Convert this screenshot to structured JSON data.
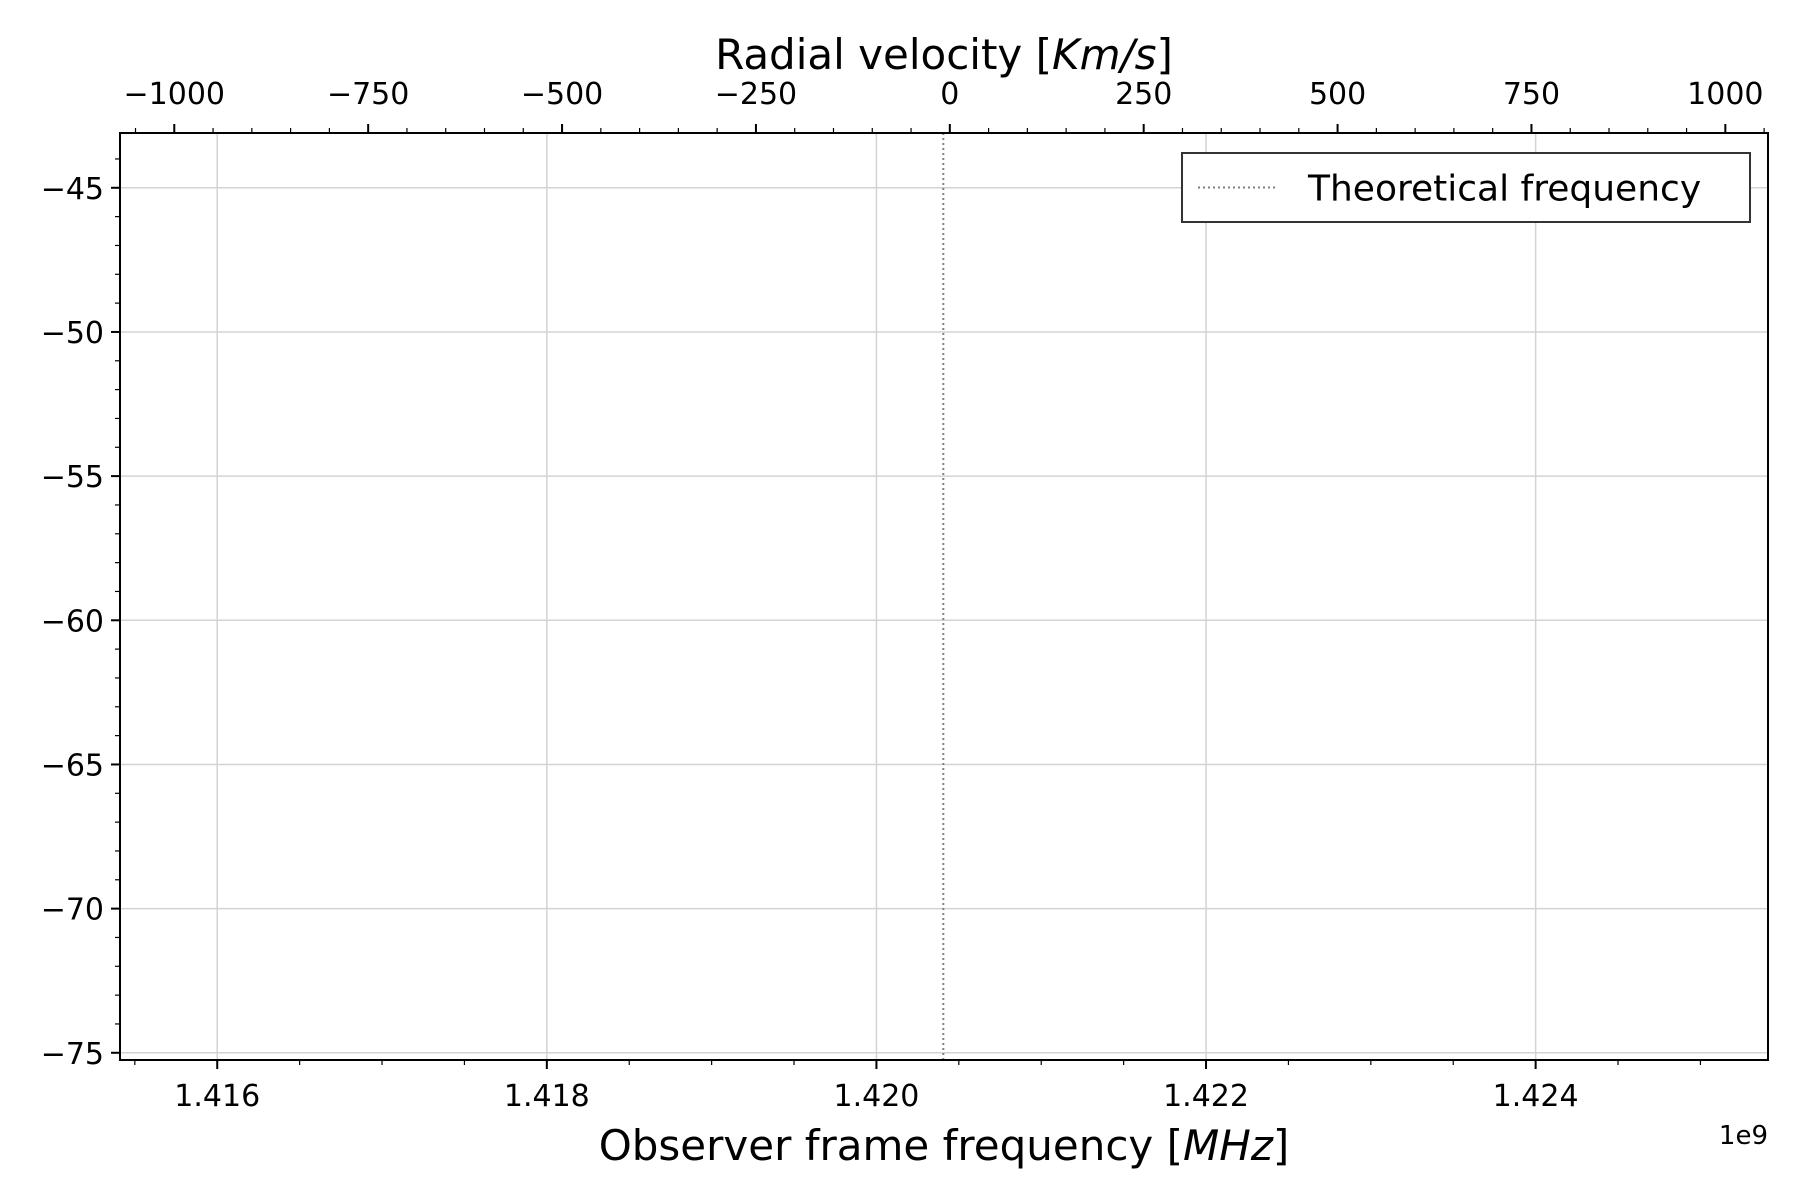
{
  "chart_data": {
    "type": "line",
    "title": "",
    "xlabel": {
      "main": "Observer frame frequency [",
      "italic": "MHz",
      "end": "]"
    },
    "x2label": {
      "main": "Radial velocity [",
      "italic": "Km/s",
      "end": "]"
    },
    "ylabel": "",
    "x_offset_label": "1e9",
    "xlim": [
      1.41541,
      1.42541
    ],
    "ylim": [
      -75.25,
      -43.1
    ],
    "x_ticks": [
      1.416,
      1.418,
      1.42,
      1.422,
      1.424
    ],
    "x_tick_labels": [
      "1.416",
      "1.418",
      "1.420",
      "1.422",
      "1.424"
    ],
    "x_minor_step": 0.0005,
    "x2lim": [
      -1070,
      1055
    ],
    "x2_ticks": [
      -1000,
      -750,
      -500,
      -250,
      0,
      250,
      500,
      750,
      1000
    ],
    "x2_tick_labels": [
      "−1000",
      "−750",
      "−500",
      "−250",
      "0",
      "250",
      "500",
      "750",
      "1000"
    ],
    "x2_minor_step": 50,
    "y_ticks": [
      -45,
      -50,
      -55,
      -60,
      -65,
      -70,
      -75
    ],
    "y_tick_labels": [
      "−45",
      "−50",
      "−55",
      "−60",
      "−65",
      "−70",
      "−75"
    ],
    "y_minor_step": 1,
    "grid": true,
    "legend_position": "top-right",
    "series": [
      {
        "name": "Theoretical frequency",
        "style": "dotted",
        "color": "#808080",
        "x": [
          1.4204058,
          1.4204058
        ],
        "y": [
          -75.25,
          -43.1
        ]
      }
    ],
    "colors": {
      "grid": "#d3d3d3",
      "axis": "#000000",
      "legend_border": "#333333"
    }
  }
}
